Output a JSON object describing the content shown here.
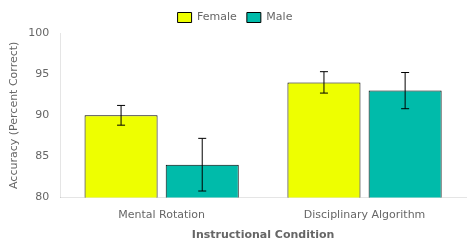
{
  "chart_data": {
    "type": "bar",
    "categories": [
      "Mental Rotation",
      "Disciplinary Algorithm"
    ],
    "series": [
      {
        "name": "Female",
        "color": "#EEFF00",
        "values": [
          90.0,
          94.0
        ],
        "errors": [
          1.2,
          1.3
        ]
      },
      {
        "name": "Male",
        "color": "#00BBAA",
        "values": [
          84.0,
          93.0
        ],
        "errors": [
          3.2,
          2.2
        ]
      }
    ],
    "xlabel": "Instructional Condition",
    "ylabel": "Accuracy (Percent Correct)",
    "ylim": [
      80,
      100
    ],
    "yticks": [
      80,
      85,
      90,
      95,
      100
    ],
    "grid": false,
    "legend": "top"
  }
}
